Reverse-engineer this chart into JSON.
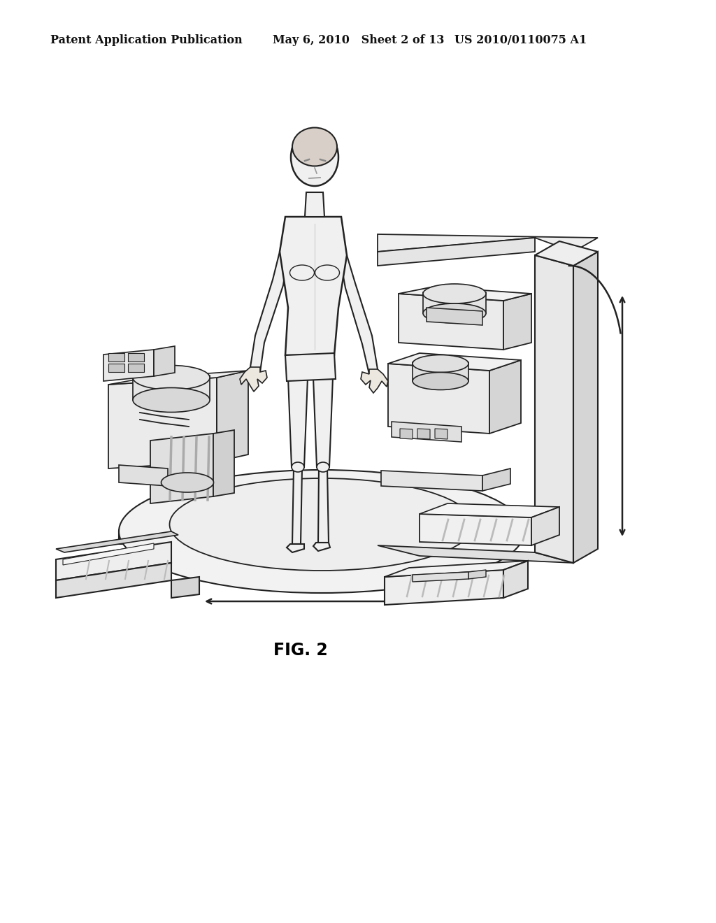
{
  "background_color": "#ffffff",
  "header_left": "Patent Application Publication",
  "header_mid": "May 6, 2010   Sheet 2 of 13",
  "header_right": "US 2010/0110075 A1",
  "figure_label": "FIG. 2",
  "header_fontsize": 11.5,
  "figure_label_fontsize": 17,
  "line_color": "#222222",
  "fill_light": "#f8f8f8",
  "fill_mid": "#e8e8e8",
  "fill_dark": "#d0d0d0",
  "fill_darker": "#c0c0c0"
}
